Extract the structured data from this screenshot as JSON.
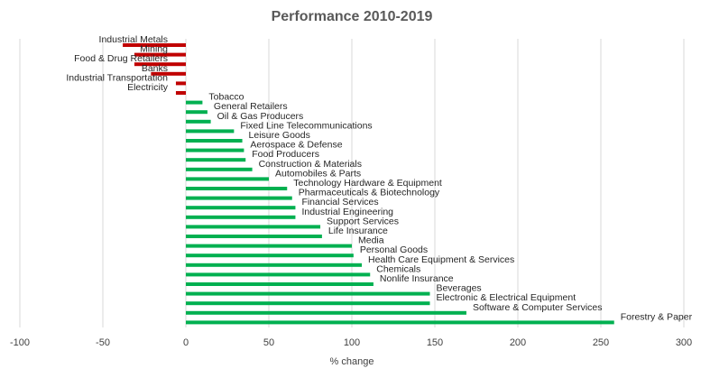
{
  "chart_data": {
    "type": "bar",
    "orientation": "horizontal",
    "title": "Performance 2010-2019",
    "xlabel": "% change",
    "ylabel": "",
    "xlim": [
      -100,
      300
    ],
    "xticks": [
      -100,
      -50,
      0,
      50,
      100,
      150,
      200,
      250,
      300
    ],
    "grid": true,
    "colors": {
      "positive": "#00b050",
      "negative": "#c00000"
    },
    "categories": [
      "Industrial Metals",
      "Mining",
      "Food & Drug Retailers",
      "Banks",
      "Industrial Transportation",
      "Electricity",
      "Tobacco",
      "General Retailers",
      "Oil & Gas Producers",
      "Fixed Line Telecommunications",
      "Leisure Goods",
      "Aerospace & Defense",
      "Food Producers",
      "Construction & Materials",
      "Automobiles & Parts",
      "Technology Hardware & Equipment",
      "Pharmaceuticals & Biotechnology",
      "Financial Services",
      "Industrial Engineering",
      "Support Services",
      "Life Insurance",
      "Media",
      "Personal Goods",
      "Health Care Equipment & Services",
      "Chemicals",
      "Nonlife Insurance",
      "Beverages",
      "Electronic & Electrical Equipment",
      "Software & Computer Services",
      "Forestry & Paper"
    ],
    "values": [
      -38,
      -31,
      -31,
      -21,
      -6,
      -6,
      10,
      13,
      15,
      29,
      34,
      35,
      36,
      40,
      50,
      61,
      64,
      66,
      66,
      81,
      82,
      100,
      101,
      106,
      111,
      113,
      147,
      147,
      169,
      258
    ]
  }
}
